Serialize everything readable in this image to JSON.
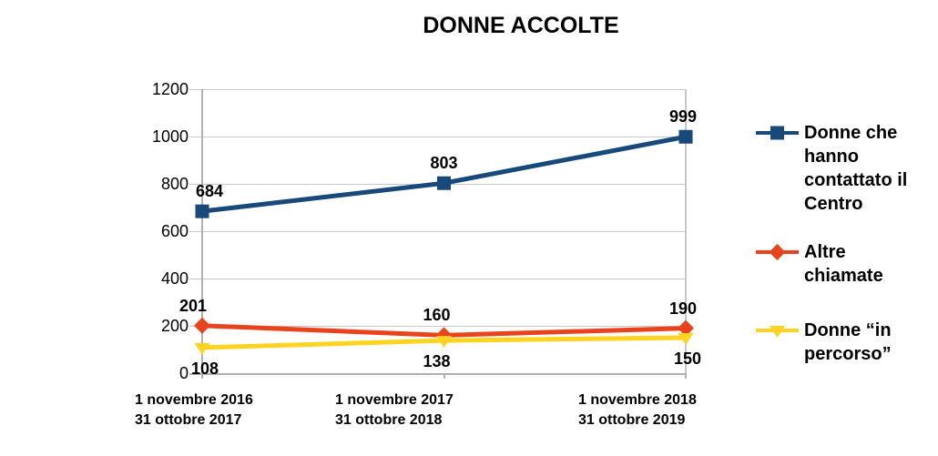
{
  "page": {
    "background": "#FFFFFF"
  },
  "chart_data": {
    "type": "line",
    "title": "DONNE ACCOLTE",
    "categories": [
      {
        "lines": [
          "1 novembre 2016",
          "31 ottobre 2017"
        ]
      },
      {
        "lines": [
          "1 novembre 2017",
          "31 ottobre 2018"
        ]
      },
      {
        "lines": [
          "1 novembre 2018",
          "31 ottobre 2019"
        ]
      }
    ],
    "series": [
      {
        "name": "Donne che hanno contattato il Centro",
        "legend_lines": [
          "Donne che",
          "hanno",
          "contattato il",
          "Centro"
        ],
        "values": [
          684,
          803,
          999
        ],
        "color": "#17497B",
        "marker": "square",
        "labels_position": "above"
      },
      {
        "name": "Altre chiamate",
        "legend_lines": [
          "Altre",
          "chiamate"
        ],
        "values": [
          201,
          160,
          190
        ],
        "color": "#E8431C",
        "marker": "diamond",
        "labels_position": "above"
      },
      {
        "name": "Donne “in percorso”",
        "legend_lines": [
          "Donne “in",
          "percorso”"
        ],
        "values": [
          108,
          138,
          150
        ],
        "color": "#FFD320",
        "marker": "triangle-down",
        "labels_position": "below"
      }
    ],
    "y_axis": {
      "min": 0,
      "max": 1200,
      "step": 200,
      "tick_labels": [
        "1200",
        "1000",
        "800",
        "600",
        "400",
        "200",
        "0"
      ]
    },
    "grid": true,
    "legend_position": "right",
    "colors": {
      "gridline": "#C6C6C6",
      "axis": "#B0B0B0",
      "text": "#000000"
    }
  }
}
